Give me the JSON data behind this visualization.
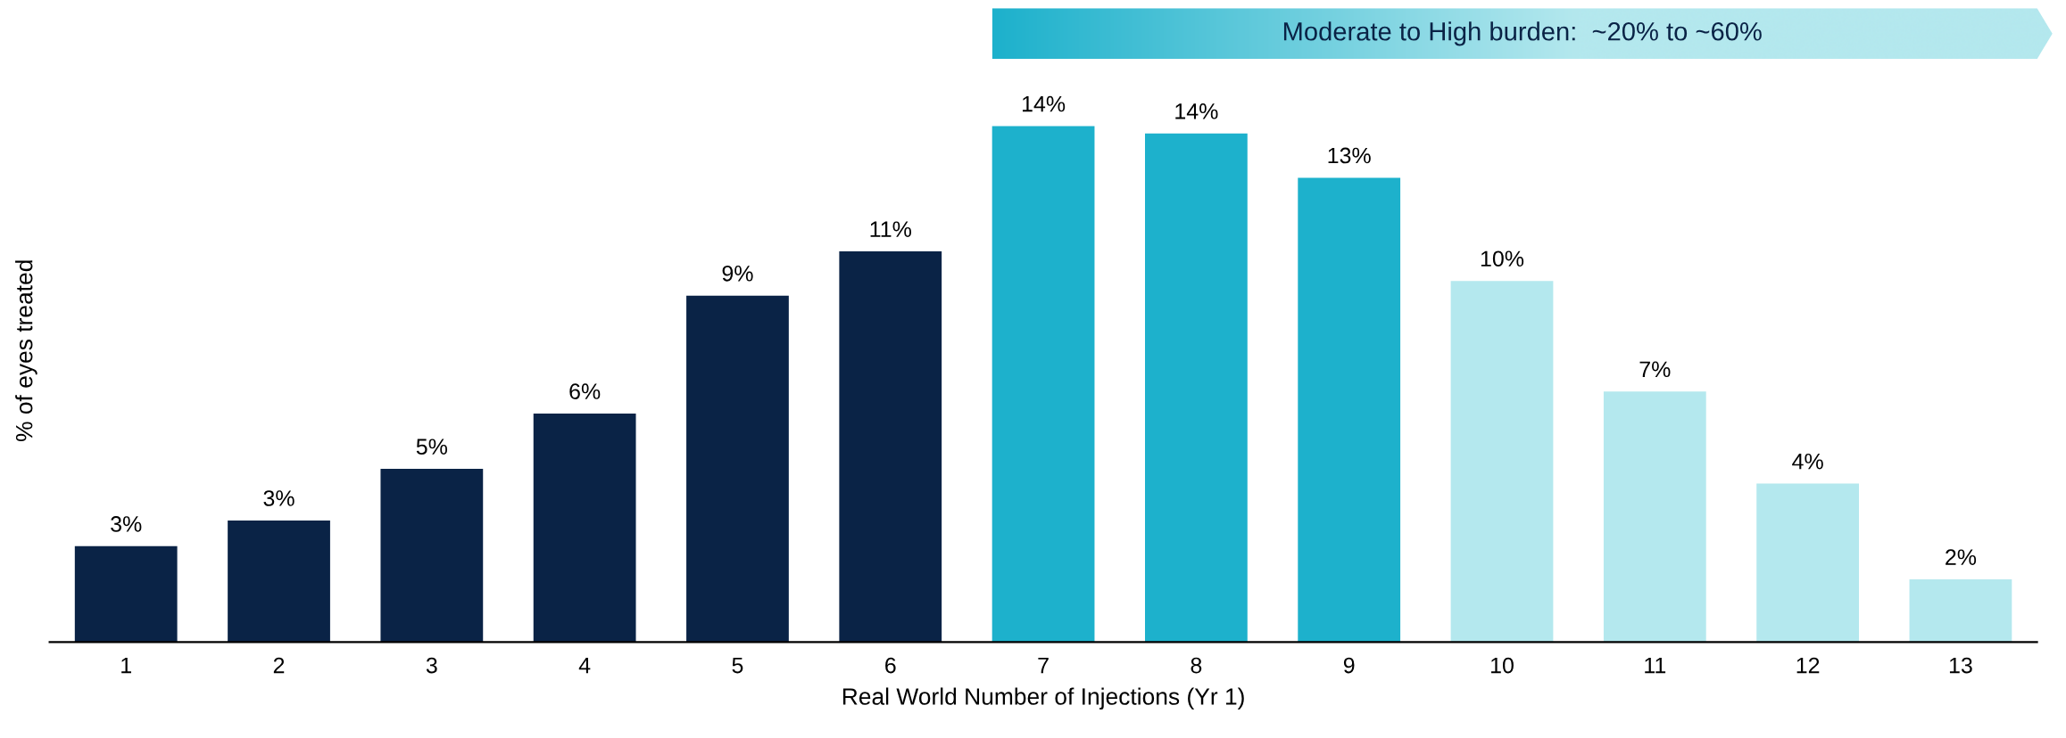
{
  "chart_data": {
    "type": "bar",
    "categories": [
      "1",
      "2",
      "3",
      "4",
      "5",
      "6",
      "7",
      "8",
      "9",
      "10",
      "11",
      "12",
      "13"
    ],
    "values": [
      2.6,
      3.3,
      4.7,
      6.2,
      9.4,
      10.6,
      14.0,
      13.8,
      12.6,
      9.8,
      6.8,
      4.3,
      1.7
    ],
    "value_labels": [
      "3%",
      "3%",
      "5%",
      "6%",
      "9%",
      "11%",
      "14%",
      "14%",
      "13%",
      "10%",
      "7%",
      "4%",
      "2%"
    ],
    "colors": [
      "#0a2346",
      "#0a2346",
      "#0a2346",
      "#0a2346",
      "#0a2346",
      "#0a2346",
      "#1db1cc",
      "#1db1cc",
      "#1db1cc",
      "#b4e8ee",
      "#b4e8ee",
      "#b4e8ee",
      "#b4e8ee"
    ],
    "xlabel": "Real World Number of Injections (Yr 1)",
    "ylabel": "% of eyes treated",
    "annotations": [
      "Moderate to High burden:  ~20% to ~60%"
    ],
    "grid": false,
    "legend": false
  }
}
